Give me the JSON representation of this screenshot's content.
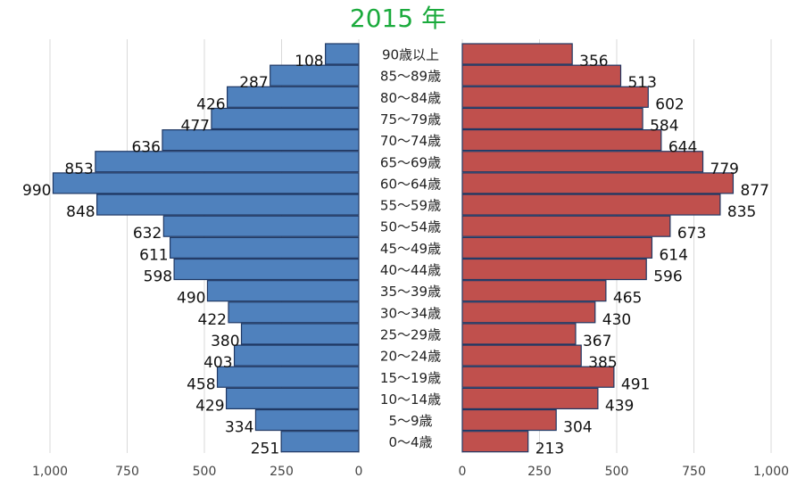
{
  "colors": {
    "title": "#1aaa3c",
    "male_fill": "#4f81bd",
    "male_stroke": "#1f3864",
    "female_fill": "#c0504d",
    "female_stroke": "#1f3864",
    "grid": "#d9d9d9"
  },
  "chart_data": {
    "type": "bar",
    "orientation": "horizontal-pyramid",
    "title": "2015 年",
    "categories": [
      "90歳以上",
      "85〜89歳",
      "80〜84歳",
      "75〜79歳",
      "70〜74歳",
      "65〜69歳",
      "60〜64歳",
      "55〜59歳",
      "50〜54歳",
      "45〜49歳",
      "40〜44歳",
      "35〜39歳",
      "30〜34歳",
      "25〜29歳",
      "20〜24歳",
      "15〜19歳",
      "10〜14歳",
      "5〜9歳",
      "0〜4歳"
    ],
    "series": [
      {
        "side": "left",
        "color": "#4f81bd",
        "values": [
          108,
          287,
          426,
          477,
          636,
          853,
          990,
          848,
          632,
          611,
          598,
          490,
          422,
          380,
          403,
          458,
          429,
          334,
          251
        ]
      },
      {
        "side": "right",
        "color": "#c0504d",
        "values": [
          356,
          513,
          602,
          584,
          644,
          779,
          877,
          835,
          673,
          614,
          596,
          465,
          430,
          367,
          385,
          491,
          439,
          304,
          213
        ]
      }
    ],
    "xlim": [
      0,
      1000
    ],
    "xticks": [
      0,
      250,
      500,
      750,
      1000
    ],
    "xtick_labels": [
      "0",
      "250",
      "500",
      "750",
      "1,000"
    ],
    "grid": true,
    "legend": "none"
  }
}
